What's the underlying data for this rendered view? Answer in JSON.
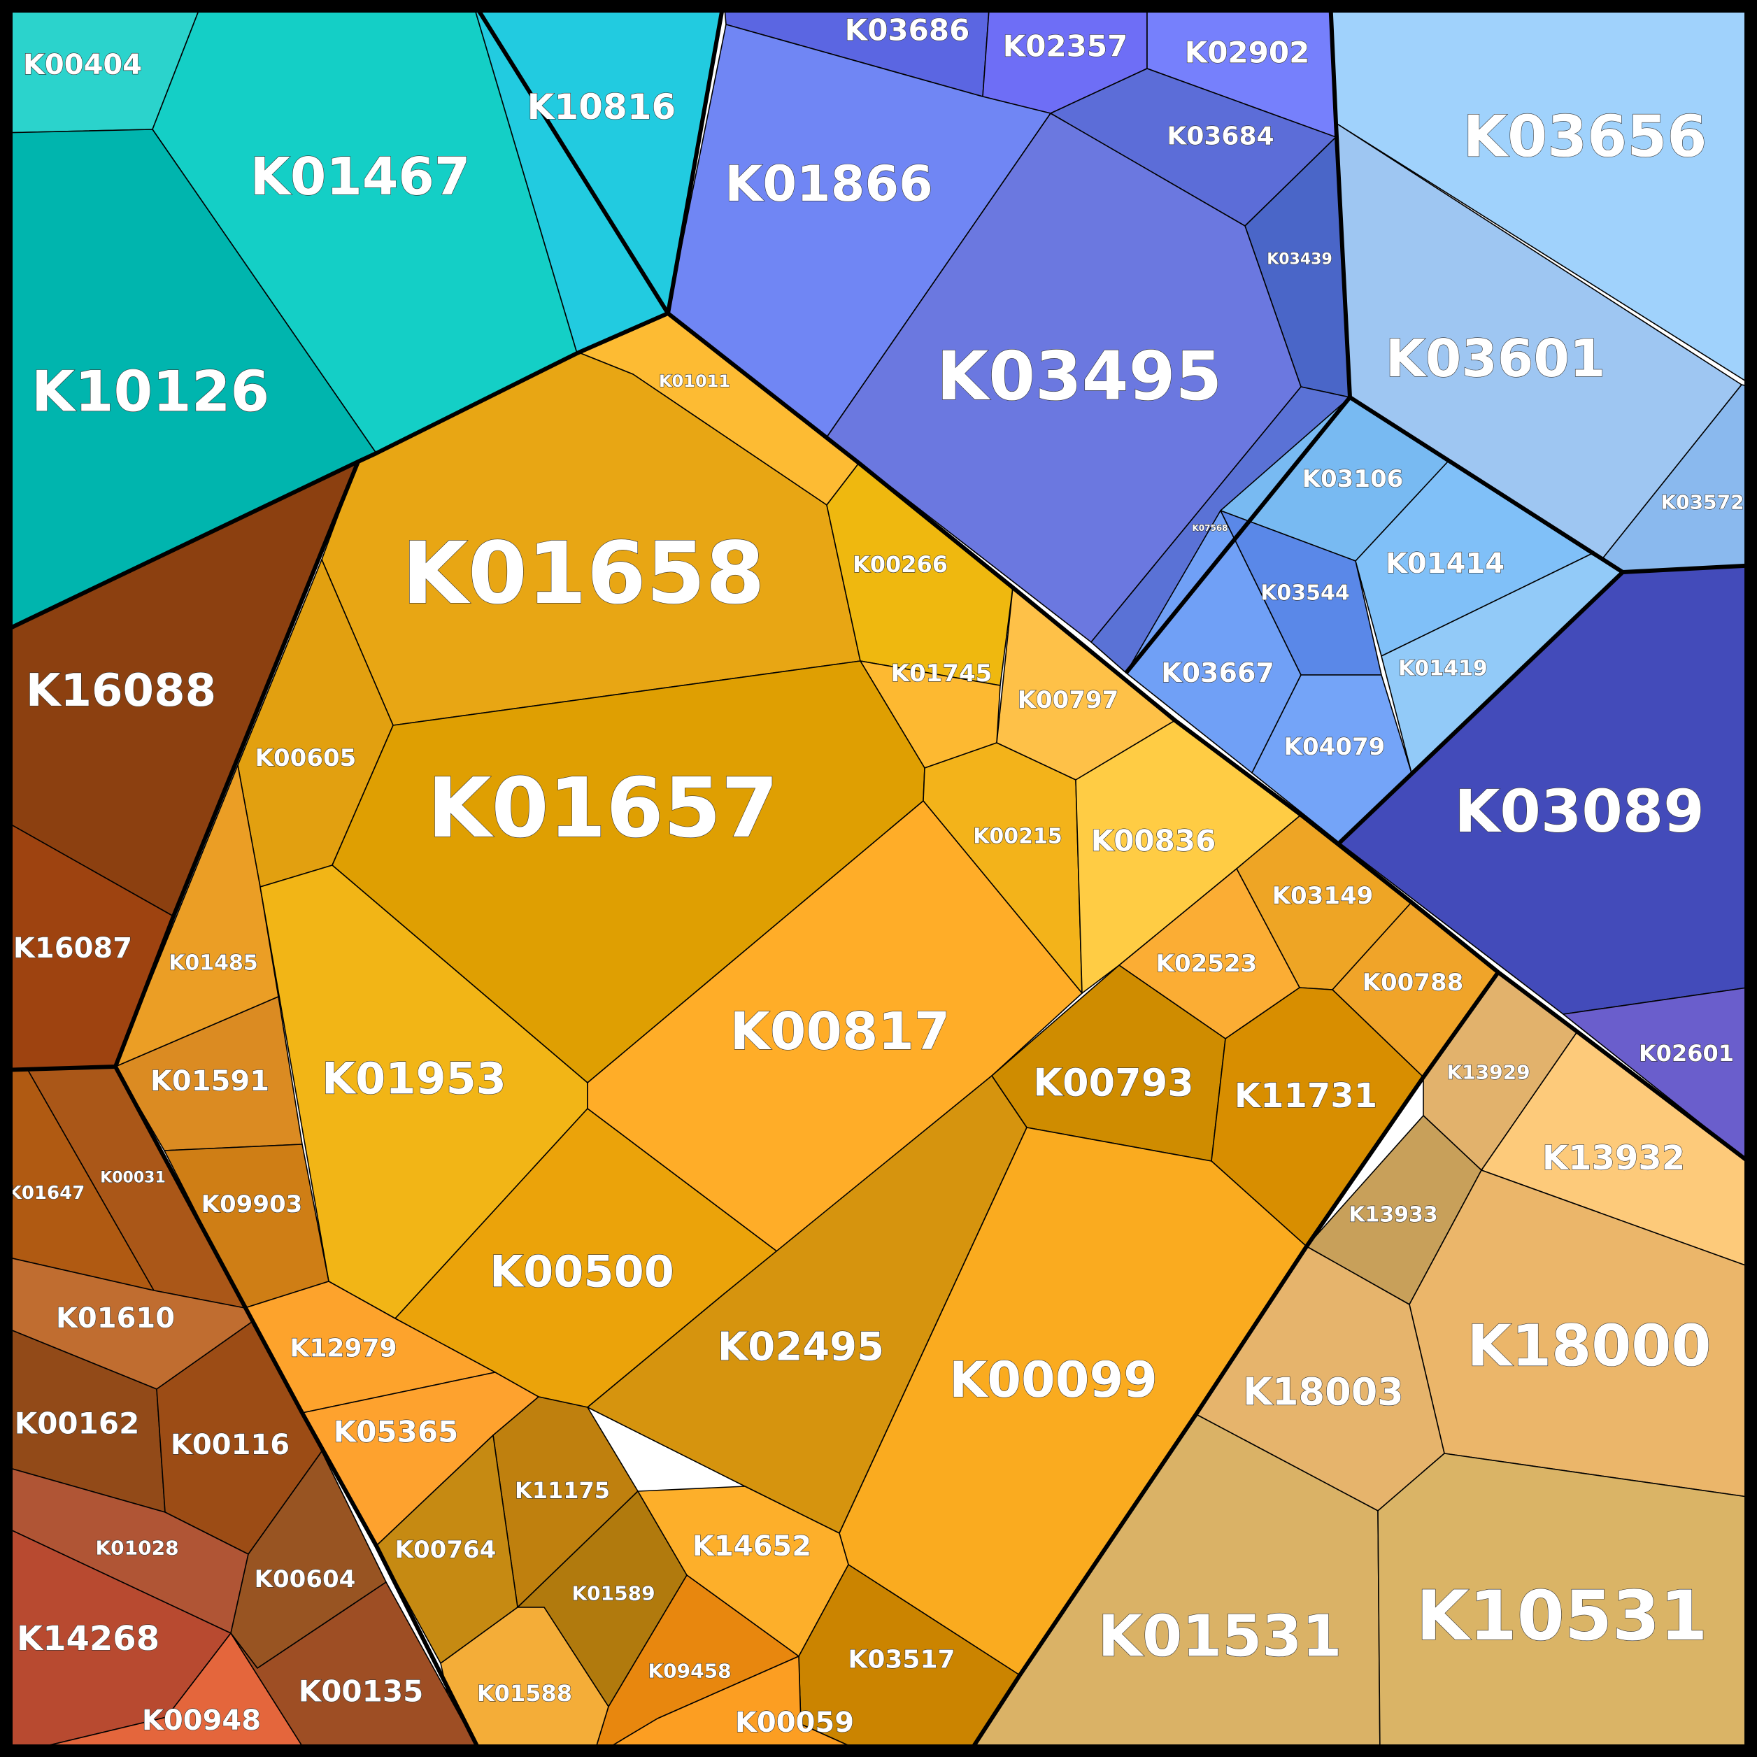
{
  "chart_data": {
    "type": "voronoi-treemap",
    "title": "",
    "cells": [
      {
        "label": "K00404",
        "color": "#2bd3cc"
      },
      {
        "label": "K01467",
        "color": "#14cfc6"
      },
      {
        "label": "K10126",
        "color": "#00b5ae"
      },
      {
        "label": "K10816",
        "color": "#22cbe0"
      },
      {
        "label": "K03686",
        "color": "#5b66e2"
      },
      {
        "label": "K02357",
        "color": "#6e6ef6"
      },
      {
        "label": "K02902",
        "color": "#7680fc"
      },
      {
        "label": "K01866",
        "color": "#7086f4"
      },
      {
        "label": "K03684",
        "color": "#5c6dd8"
      },
      {
        "label": "K03439",
        "color": "#4a66c8"
      },
      {
        "label": "K03495",
        "color": "#6b78e0"
      },
      {
        "label": "K07568",
        "color": "#5a72d6"
      },
      {
        "label": "K03656",
        "color": "#a0d2fc"
      },
      {
        "label": "K03601",
        "color": "#9ec6f2"
      },
      {
        "label": "K03572",
        "color": "#8ab9ee"
      },
      {
        "label": "K03106",
        "color": "#78baf2"
      },
      {
        "label": "K01414",
        "color": "#80c0f8"
      },
      {
        "label": "K03544",
        "color": "#5a88e8"
      },
      {
        "label": "K01419",
        "color": "#92caf8"
      },
      {
        "label": "K03667",
        "color": "#70a0f6"
      },
      {
        "label": "K04079",
        "color": "#74a4f8"
      },
      {
        "label": "K03089",
        "color": "#434bba"
      },
      {
        "label": "K02601",
        "color": "#6a5ecc"
      },
      {
        "label": "K01011",
        "color": "#fdbb33"
      },
      {
        "label": "K01658",
        "color": "#e8a614"
      },
      {
        "label": "K00266",
        "color": "#efb80f"
      },
      {
        "label": "K01745",
        "color": "#fdb931"
      },
      {
        "label": "K00797",
        "color": "#fec148"
      },
      {
        "label": "K00605",
        "color": "#e2a010"
      },
      {
        "label": "K01657",
        "color": "#df9f02"
      },
      {
        "label": "K00215",
        "color": "#f3b31a"
      },
      {
        "label": "K00836",
        "color": "#ffcc44"
      },
      {
        "label": "K03149",
        "color": "#eea525"
      },
      {
        "label": "K02523",
        "color": "#fbad34"
      },
      {
        "label": "K00788",
        "color": "#f0a429"
      },
      {
        "label": "K01485",
        "color": "#eb9e25"
      },
      {
        "label": "K01953",
        "color": "#f2b516"
      },
      {
        "label": "K00817",
        "color": "#ffad28"
      },
      {
        "label": "K00793",
        "color": "#cf8c00"
      },
      {
        "label": "K11731",
        "color": "#d88e00"
      },
      {
        "label": "K01591",
        "color": "#db8b22"
      },
      {
        "label": "K09903",
        "color": "#cf7e15"
      },
      {
        "label": "K00500",
        "color": "#eba30a"
      },
      {
        "label": "K02495",
        "color": "#d6940e"
      },
      {
        "label": "K00099",
        "color": "#faab1f"
      },
      {
        "label": "K12979",
        "color": "#fda32c"
      },
      {
        "label": "K05365",
        "color": "#fea22e"
      },
      {
        "label": "K11175",
        "color": "#bf800e"
      },
      {
        "label": "K00764",
        "color": "#c68a12"
      },
      {
        "label": "K01589",
        "color": "#b17a0d"
      },
      {
        "label": "K14652",
        "color": "#fdaf2a"
      },
      {
        "label": "K01588",
        "color": "#f4ad38"
      },
      {
        "label": "K09458",
        "color": "#e8870e"
      },
      {
        "label": "K03517",
        "color": "#cb8400"
      },
      {
        "label": "K00059",
        "color": "#fc9e22"
      },
      {
        "label": "K16088",
        "color": "#8c4010"
      },
      {
        "label": "K16087",
        "color": "#9e4310"
      },
      {
        "label": "K01647",
        "color": "#b05a12"
      },
      {
        "label": "K00031",
        "color": "#aa5718"
      },
      {
        "label": "K01610",
        "color": "#c06d30"
      },
      {
        "label": "K00162",
        "color": "#924a18"
      },
      {
        "label": "K00116",
        "color": "#9c4c15"
      },
      {
        "label": "K01028",
        "color": "#b05535"
      },
      {
        "label": "K00604",
        "color": "#985422"
      },
      {
        "label": "K14268",
        "color": "#b84a30"
      },
      {
        "label": "K00948",
        "color": "#e4663c"
      },
      {
        "label": "K00135",
        "color": "#9e4e24"
      },
      {
        "label": "K13929",
        "color": "#e2b26c"
      },
      {
        "label": "K13932",
        "color": "#fdca7a"
      },
      {
        "label": "K13933",
        "color": "#c8a05a"
      },
      {
        "label": "K18000",
        "color": "#ebb66a"
      },
      {
        "label": "K18003",
        "color": "#e6b46c"
      },
      {
        "label": "K01531",
        "color": "#dab266"
      },
      {
        "label": "K10531",
        "color": "#dab466"
      }
    ]
  }
}
